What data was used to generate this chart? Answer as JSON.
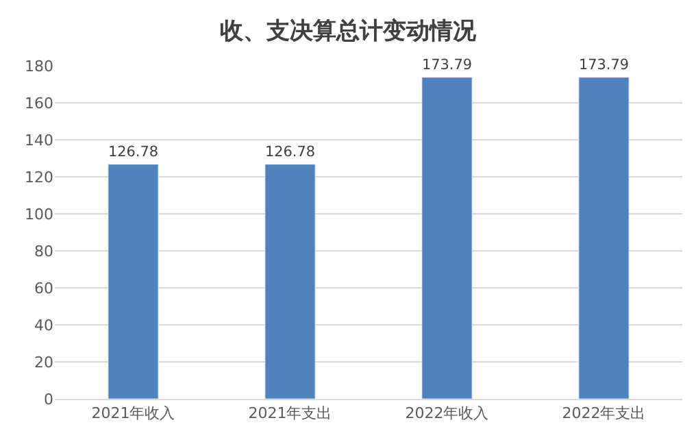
{
  "chart_data": {
    "type": "bar",
    "title": "收、支决算总计变动情况",
    "categories": [
      "2021年收入",
      "2021年支出",
      "2022年收入",
      "2022年支出"
    ],
    "values": [
      126.78,
      126.78,
      173.79,
      173.79
    ],
    "color": "#4f81bd",
    "ylim": [
      0,
      180
    ],
    "yticks": [
      0,
      20,
      40,
      60,
      80,
      100,
      120,
      140,
      160,
      180
    ],
    "grid": "y",
    "data_labels": true,
    "legend": false
  }
}
